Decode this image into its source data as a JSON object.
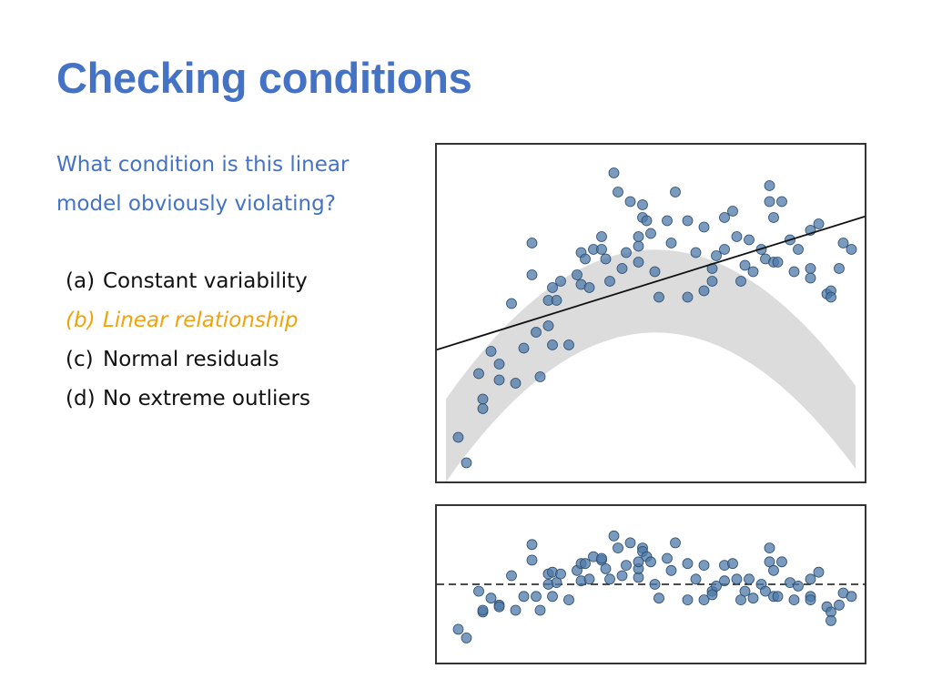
{
  "slide": {
    "title": "Checking conditions"
  },
  "question": {
    "line1": "What condition is this linear",
    "line2": "model obviously violating?"
  },
  "options": [
    {
      "letter": "(a)",
      "text": "Constant variability",
      "highlight": false
    },
    {
      "letter": "(b)",
      "text": "Linear relationship",
      "highlight": true
    },
    {
      "letter": "(c)",
      "text": "Normal residuals",
      "highlight": false
    },
    {
      "letter": "(d)",
      "text": "No extreme outliers",
      "highlight": false
    }
  ],
  "colors": {
    "title": "#4472c4",
    "highlight": "#f0a30a",
    "point_fill": "#4e79a7",
    "point_stroke": "#2b4c72",
    "band": "#dcdcdc"
  },
  "chart_data": [
    {
      "type": "scatter",
      "title": "",
      "xlabel": "",
      "ylabel": "",
      "xlim": [
        0,
        10
      ],
      "ylim": [
        0,
        10
      ],
      "grid": false,
      "fit_line": {
        "intercept": 3.94,
        "slope": 0.4
      },
      "band": {
        "description_curve": "quadratic",
        "a": 1.0,
        "b": 4.4,
        "c": -0.43,
        "halfwidth": 2.6
      },
      "points": {
        "x": [
          0.3,
          0.5,
          0.8,
          0.9,
          0.9,
          1.1,
          1.3,
          1.3,
          1.6,
          1.7,
          1.9,
          2.1,
          2.1,
          2.2,
          2.3,
          2.5,
          2.5,
          2.6,
          2.6,
          2.7,
          2.8,
          3.0,
          3.2,
          3.3,
          3.3,
          3.4,
          3.5,
          3.6,
          3.8,
          3.8,
          3.9,
          4.0,
          4.1,
          4.2,
          4.3,
          4.4,
          4.5,
          4.7,
          4.7,
          4.7,
          4.8,
          4.8,
          4.9,
          5.0,
          5.1,
          5.2,
          5.4,
          5.5,
          5.6,
          5.9,
          5.9,
          6.1,
          6.3,
          6.3,
          6.5,
          6.5,
          6.6,
          6.8,
          6.8,
          7.0,
          7.1,
          7.2,
          7.3,
          7.4,
          7.5,
          7.7,
          7.8,
          7.9,
          7.9,
          8.0,
          8.0,
          8.1,
          8.2,
          8.4,
          8.5,
          8.6,
          8.9,
          8.9,
          8.9,
          9.1,
          9.3,
          9.4,
          9.4,
          9.6,
          9.7,
          9.9
        ],
        "y": [
          1.1,
          0.3,
          3.1,
          2.3,
          2.0,
          3.8,
          3.4,
          2.9,
          5.3,
          2.8,
          3.9,
          7.2,
          6.2,
          4.4,
          3.0,
          4.6,
          5.4,
          4.0,
          5.8,
          5.4,
          6.0,
          4.0,
          6.2,
          5.9,
          6.9,
          6.7,
          5.8,
          7.0,
          7.0,
          7.4,
          6.7,
          6.0,
          9.4,
          8.8,
          6.4,
          6.9,
          8.5,
          6.6,
          7.1,
          7.4,
          8.4,
          8.0,
          7.9,
          7.5,
          6.3,
          5.5,
          7.9,
          7.2,
          8.8,
          5.5,
          7.9,
          6.9,
          5.7,
          7.7,
          6.4,
          6.0,
          6.8,
          7.0,
          8.0,
          8.2,
          7.4,
          6.0,
          6.5,
          7.3,
          6.3,
          7.0,
          6.7,
          9.0,
          8.5,
          8.0,
          6.6,
          6.6,
          8.5,
          7.3,
          6.3,
          7.0,
          6.4,
          7.6,
          6.1,
          7.8,
          5.6,
          5.7,
          5.5,
          6.4,
          7.2,
          7.0
        ]
      }
    },
    {
      "type": "scatter",
      "title": "",
      "xlabel": "",
      "ylabel": "",
      "xlim": [
        0,
        10
      ],
      "ylim": [
        -4,
        4
      ],
      "grid": false,
      "reference_line": {
        "y": 0,
        "style": "dashed"
      },
      "points": {
        "x": [
          0.3,
          0.5,
          0.8,
          0.9,
          0.9,
          1.1,
          1.3,
          1.3,
          1.6,
          1.7,
          1.9,
          2.1,
          2.1,
          2.2,
          2.3,
          2.5,
          2.5,
          2.6,
          2.6,
          2.7,
          2.8,
          3.0,
          3.2,
          3.3,
          3.3,
          3.4,
          3.5,
          3.6,
          3.8,
          3.8,
          3.9,
          4.0,
          4.1,
          4.2,
          4.3,
          4.4,
          4.5,
          4.7,
          4.7,
          4.7,
          4.8,
          4.8,
          4.9,
          5.0,
          5.1,
          5.2,
          5.4,
          5.5,
          5.6,
          5.9,
          5.9,
          6.1,
          6.3,
          6.3,
          6.5,
          6.5,
          6.6,
          6.8,
          6.8,
          7.0,
          7.1,
          7.2,
          7.3,
          7.4,
          7.5,
          7.7,
          7.8,
          7.9,
          7.9,
          8.0,
          8.0,
          8.1,
          8.2,
          8.4,
          8.5,
          8.6,
          8.9,
          8.9,
          8.9,
          9.1,
          9.3,
          9.4,
          9.4,
          9.6,
          9.7,
          9.9
        ],
        "y": [
          -2.6,
          -3.1,
          -0.4,
          -1.6,
          -1.5,
          -0.8,
          -1.2,
          -1.3,
          0.5,
          -1.5,
          -0.7,
          2.3,
          1.4,
          -0.7,
          -1.5,
          0.0,
          0.6,
          -0.7,
          0.7,
          0.1,
          0.6,
          -0.9,
          0.8,
          0.2,
          1.2,
          1.2,
          0.3,
          1.6,
          1.4,
          1.5,
          0.9,
          0.3,
          2.8,
          2.1,
          0.5,
          1.1,
          2.4,
          0.4,
          0.9,
          1.3,
          2.1,
          1.9,
          1.6,
          1.3,
          0.0,
          -0.8,
          1.5,
          0.8,
          2.4,
          -0.9,
          1.2,
          0.3,
          -0.9,
          1.1,
          -0.4,
          -0.6,
          -0.1,
          0.2,
          1.1,
          1.2,
          0.3,
          -0.9,
          -0.4,
          0.3,
          -0.8,
          0.0,
          -0.4,
          2.1,
          1.3,
          0.8,
          -0.7,
          -0.7,
          1.3,
          0.1,
          -0.9,
          -0.1,
          -0.7,
          0.3,
          -0.9,
          0.7,
          -1.3,
          -1.6,
          -2.1,
          -1.2,
          -0.5,
          -0.7
        ]
      }
    }
  ]
}
